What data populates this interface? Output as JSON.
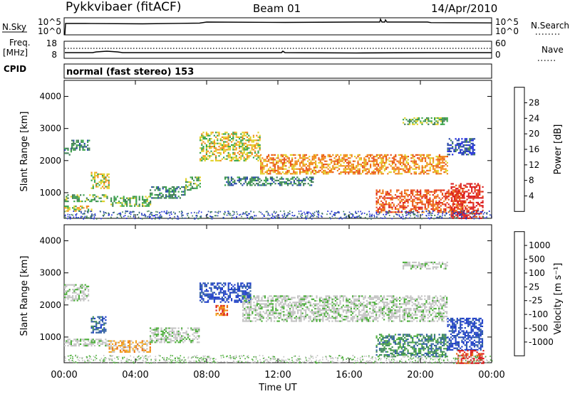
{
  "header": {
    "station": "Pykkvibaer (fitACF)",
    "beam": "Beam 01",
    "date": "14/Apr/2010"
  },
  "nsky_panel": {
    "left_label": "N.Sky",
    "left_ticks": [
      "10^5",
      "10^0"
    ],
    "right_ticks": [
      "10^5",
      "10^0"
    ],
    "right_label": "N.Search"
  },
  "freq_panel": {
    "left_label_1": "Freq.",
    "left_label_2": "[MHz]",
    "left_ticks": [
      "18",
      "8"
    ],
    "right_ticks": [
      "60",
      "0"
    ],
    "right_label": "Nave"
  },
  "cpid": {
    "label": "CPID",
    "mode": "normal (fast stereo) 153"
  },
  "colors": {
    "power": [
      "#1f2bdc",
      "#2647a8",
      "#3f7f55",
      "#3aa54a",
      "#e2d12a",
      "#f28b1d",
      "#e8531a",
      "#dc1d1d"
    ],
    "velocity": [
      "#1f3fc8",
      "#2f5fa0",
      "#3f8a58",
      "#4cae3a",
      "#c4c4c4",
      "#c4c4c4",
      "#f2a21a",
      "#ea6d12",
      "#dc1d1d"
    ]
  },
  "chart_data": [
    {
      "type": "heatmap",
      "name": "power-panel",
      "ylabel": "Slant Range [km]",
      "ylim": [
        200,
        4500
      ],
      "yticks": [
        "1000",
        "2000",
        "3000",
        "4000"
      ],
      "xlim": [
        0,
        24
      ],
      "xticks": [
        "00:00",
        "04:00",
        "08:00",
        "12:00",
        "16:00",
        "20:00",
        "00:00"
      ],
      "colorbar": {
        "label": "Power [dB]",
        "ticks": [
          "4",
          "8",
          "12",
          "16",
          "20",
          "24",
          "28"
        ]
      },
      "echo_bands": [
        {
          "t0": 0.0,
          "t1": 0.4,
          "r0": 2150,
          "r1": 2400,
          "level": 2
        },
        {
          "t0": 0.4,
          "t1": 1.4,
          "r0": 2350,
          "r1": 2650,
          "level": 2
        },
        {
          "t0": 0.0,
          "t1": 2.4,
          "r0": 750,
          "r1": 950,
          "level": 3
        },
        {
          "t0": 0.0,
          "t1": 1.5,
          "r0": 420,
          "r1": 600,
          "level": 4
        },
        {
          "t0": 1.5,
          "t1": 2.5,
          "r0": 1150,
          "r1": 1650,
          "level": 4
        },
        {
          "t0": 2.6,
          "t1": 4.8,
          "r0": 600,
          "r1": 900,
          "level": 3
        },
        {
          "t0": 4.8,
          "t1": 6.8,
          "r0": 850,
          "r1": 1200,
          "level": 2
        },
        {
          "t0": 6.8,
          "t1": 7.6,
          "r0": 1100,
          "r1": 1500,
          "level": 3
        },
        {
          "t0": 7.6,
          "t1": 11.0,
          "r0": 2000,
          "r1": 2900,
          "level": 4
        },
        {
          "t0": 11.0,
          "t1": 21.5,
          "r0": 1600,
          "r1": 2200,
          "level": 5
        },
        {
          "t0": 9.0,
          "t1": 14.0,
          "r0": 1250,
          "r1": 1500,
          "level": 2
        },
        {
          "t0": 17.5,
          "t1": 22.5,
          "r0": 400,
          "r1": 1100,
          "level": 6
        },
        {
          "t0": 21.7,
          "t1": 23.5,
          "r0": 200,
          "r1": 1300,
          "level": 7
        },
        {
          "t0": 19.0,
          "t1": 21.5,
          "r0": 3150,
          "r1": 3350,
          "level": 3
        },
        {
          "t0": 21.5,
          "t1": 23.0,
          "r0": 2200,
          "r1": 2700,
          "level": 1
        }
      ]
    },
    {
      "type": "heatmap",
      "name": "velocity-panel",
      "ylabel": "Slant Range [km]",
      "ylim": [
        200,
        4500
      ],
      "yticks": [
        "1000",
        "2000",
        "3000",
        "4000"
      ],
      "xlim": [
        0,
        24
      ],
      "xticks": [
        "00:00",
        "04:00",
        "08:00",
        "12:00",
        "16:00",
        "20:00",
        "00:00"
      ],
      "xlabel": "Time UT",
      "colorbar": {
        "label": "Velocity [m s⁻¹]",
        "ticks": [
          "1000",
          "500",
          "100",
          "25",
          "-25",
          "-100",
          "-500",
          "-1000"
        ]
      },
      "echo_bands": [
        {
          "t0": 0.0,
          "t1": 1.4,
          "r0": 2150,
          "r1": 2650,
          "level": 4
        },
        {
          "t0": 0.0,
          "t1": 2.5,
          "r0": 750,
          "r1": 950,
          "level": 4
        },
        {
          "t0": 1.5,
          "t1": 2.3,
          "r0": 1150,
          "r1": 1650,
          "level": 1
        },
        {
          "t0": 2.5,
          "t1": 4.8,
          "r0": 550,
          "r1": 900,
          "level": 6
        },
        {
          "t0": 4.8,
          "t1": 7.6,
          "r0": 850,
          "r1": 1300,
          "level": 4
        },
        {
          "t0": 7.6,
          "t1": 10.5,
          "r0": 2100,
          "r1": 2700,
          "level": 0
        },
        {
          "t0": 10.0,
          "t1": 21.5,
          "r0": 1500,
          "r1": 2300,
          "level": 4
        },
        {
          "t0": 17.5,
          "t1": 21.5,
          "r0": 400,
          "r1": 1100,
          "level": 2
        },
        {
          "t0": 21.5,
          "t1": 23.5,
          "r0": 600,
          "r1": 1600,
          "level": 0
        },
        {
          "t0": 19.0,
          "t1": 21.5,
          "r0": 3150,
          "r1": 3350,
          "level": 4
        },
        {
          "t0": 22.0,
          "t1": 23.5,
          "r0": 200,
          "r1": 600,
          "level": 8
        },
        {
          "t0": 8.5,
          "t1": 9.2,
          "r0": 1700,
          "r1": 2000,
          "level": 7
        }
      ]
    }
  ]
}
